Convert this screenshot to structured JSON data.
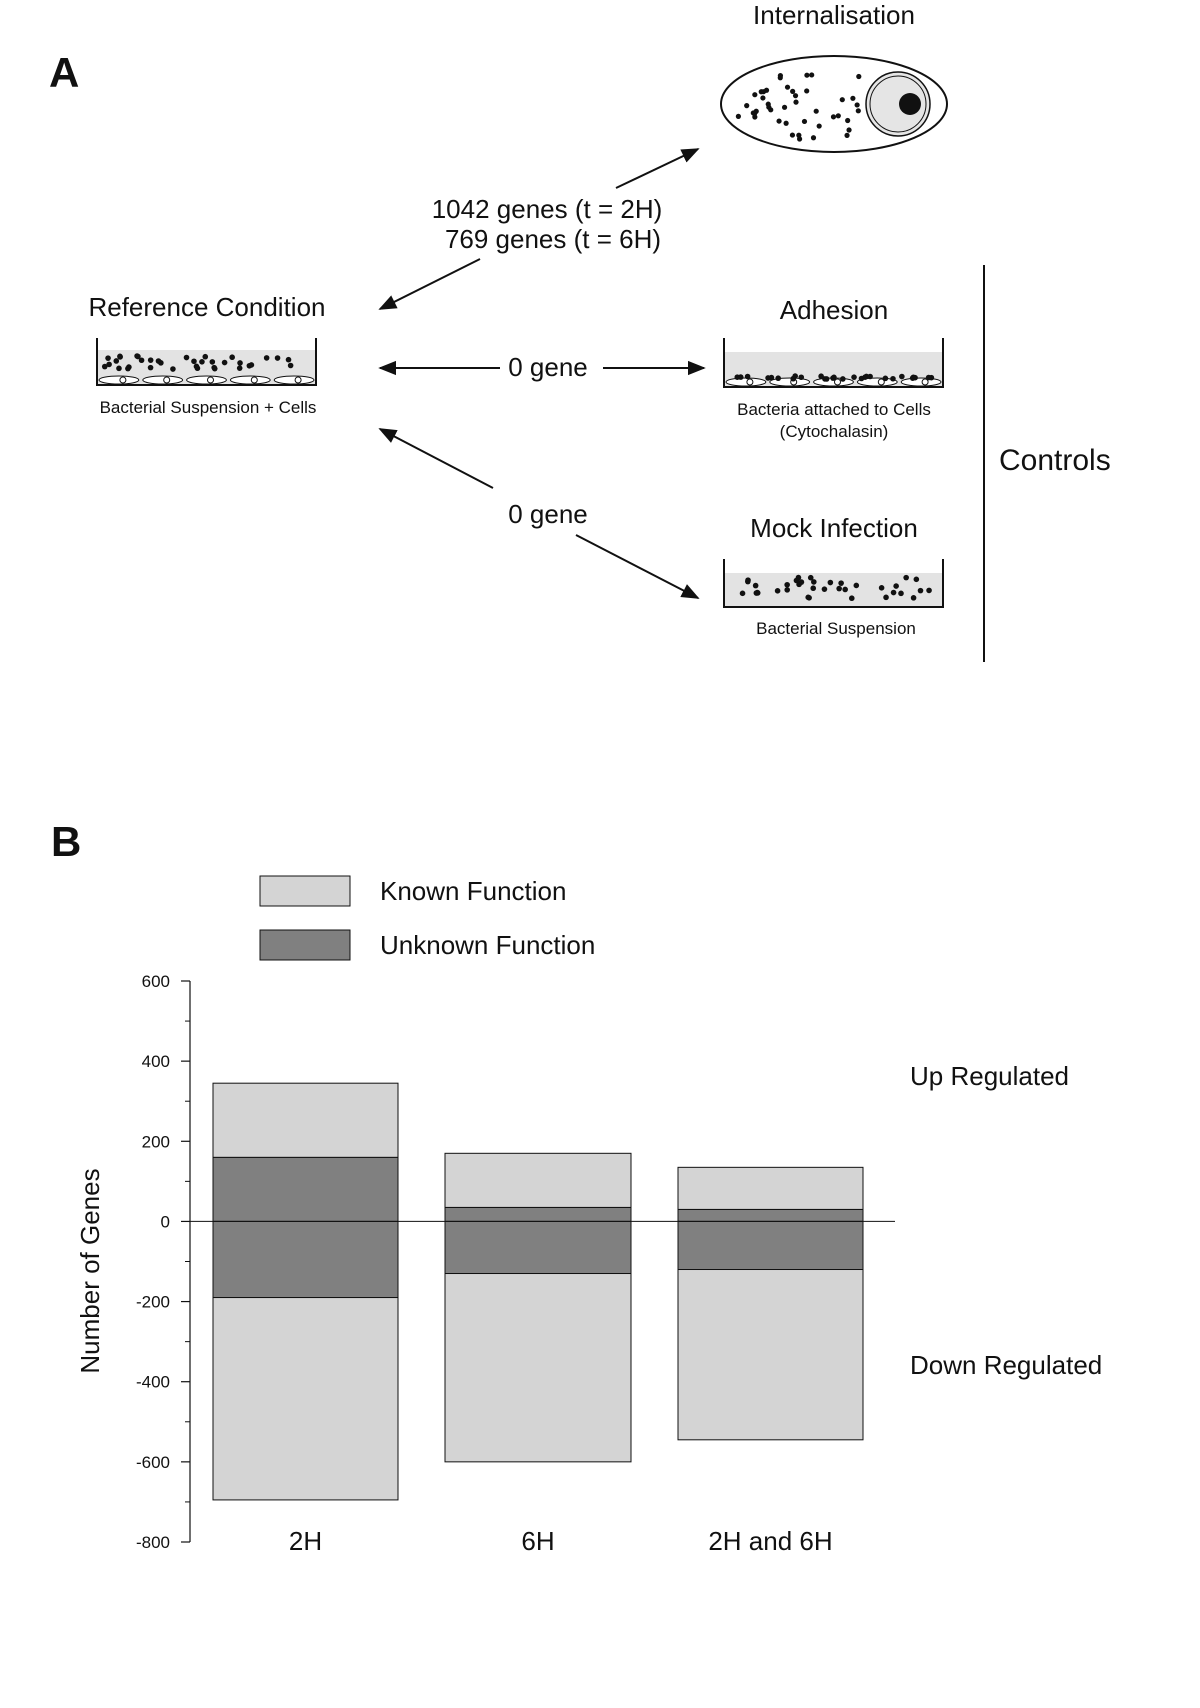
{
  "panel_a": {
    "label": "A",
    "internalisation": "Internalisation",
    "genes_2h": "1042 genes (t = 2H)",
    "genes_6h": "769 genes (t = 6H)",
    "reference": "Reference Condition",
    "reference_caption": "Bacterial Suspension + Cells",
    "adhesion_count": "0 gene",
    "adhesion": "Adhesion",
    "adhesion_caption_1": "Bacteria attached to Cells",
    "adhesion_caption_2": "(Cytochalasin)",
    "mock_count": "0 gene",
    "mock": "Mock Infection",
    "mock_caption": "Bacterial Suspension",
    "controls": "Controls"
  },
  "chart_data": {
    "type": "bar",
    "panel_label": "B",
    "categories": [
      "2H",
      "6H",
      "2H and 6H"
    ],
    "series": [
      {
        "name": "Known Function",
        "color": "#d4d4d4",
        "values": [
          185,
          135,
          105
        ],
        "down_values": [
          -505,
          -470,
          -425
        ]
      },
      {
        "name": "Unknown Function",
        "color": "#808080",
        "values": [
          160,
          35,
          30
        ],
        "down_values": [
          -190,
          -130,
          -120
        ]
      }
    ],
    "ylabel": "Number of Genes",
    "ylim": [
      -800,
      600
    ],
    "yticks": [
      -800,
      -600,
      -400,
      -200,
      0,
      200,
      400,
      600
    ],
    "annotations": [
      "Up Regulated",
      "Down Regulated"
    ],
    "grid": false
  }
}
